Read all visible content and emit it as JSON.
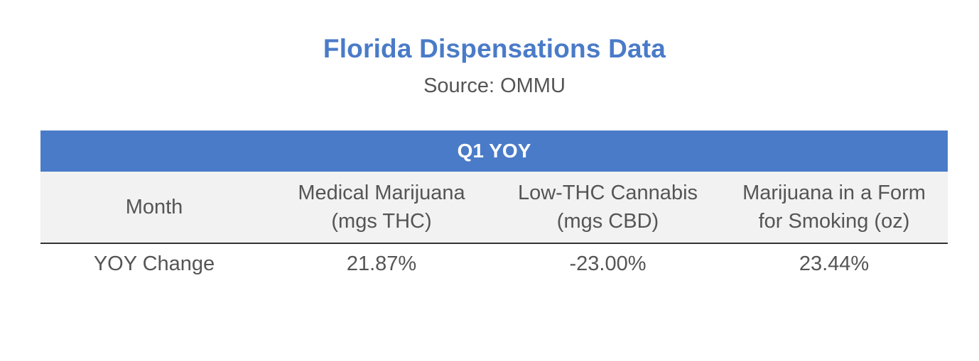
{
  "chart_data": {
    "type": "table",
    "title": "Florida Dispensations Data",
    "subtitle": "Source: OMMU",
    "group_header": "Q1 YOY",
    "columns": [
      "Month",
      "Medical Marijuana\n(mgs THC)",
      "Low-THC Cannabis\n(mgs CBD)",
      "Marijuana in a Form\nfor Smoking (oz)"
    ],
    "rows": [
      [
        "YOY Change",
        "21.87%",
        "-23.00%",
        "23.44%"
      ]
    ],
    "colors": {
      "accent": "#4a7bc8",
      "header_bg": "#f1f2f1",
      "text": "#555555",
      "rule": "#333333"
    }
  }
}
